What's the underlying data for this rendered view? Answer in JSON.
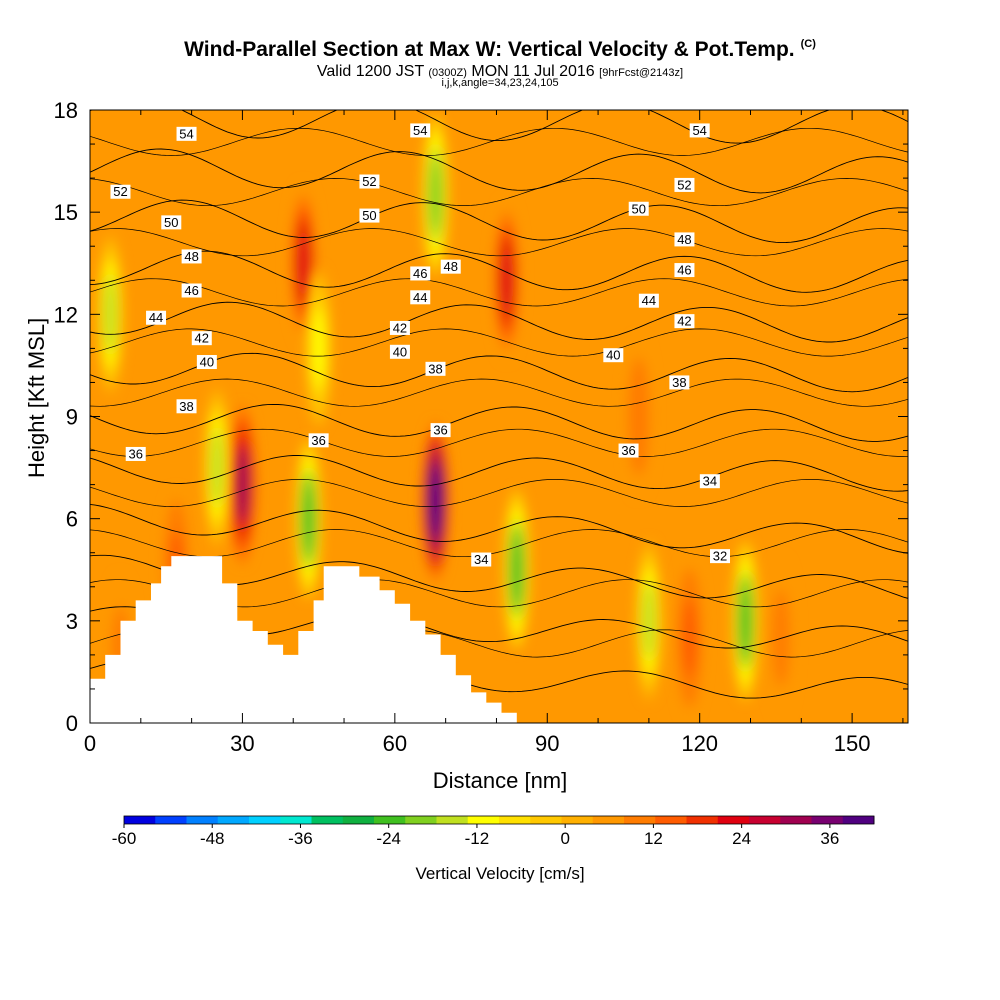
{
  "header": {
    "title": "Wind-Parallel Section at Max W: Vertical Velocity & Pot.Temp.",
    "copyright": "(C)",
    "valid_prefix": "Valid 1200 JST",
    "valid_utc": "(0300Z)",
    "valid_date": "MON 11 Jul 2016",
    "forecast": "[9hrFcst@2143z]",
    "grid_info": "i,j,k,angle=34,23,24,105"
  },
  "chart_data": {
    "type": "heatmap",
    "title": "Wind-Parallel Section at Max W: Vertical Velocity & Pot.Temp.",
    "xlabel": "Distance [nm]",
    "ylabel": "Height [Kft MSL]",
    "xlim": [
      0,
      161
    ],
    "ylim": [
      0,
      18
    ],
    "xticks": [
      "0",
      "30",
      "60",
      "90",
      "120",
      "150"
    ],
    "yticks": [
      "0",
      "3",
      "6",
      "9",
      "12",
      "15",
      "18"
    ],
    "colorbar": {
      "label": "Vertical Velocity [cm/s]",
      "ticks": [
        "-60",
        "-48",
        "-36",
        "-24",
        "-12",
        "0",
        "12",
        "24",
        "36"
      ],
      "range": [
        -60,
        42
      ],
      "colors": [
        "#0000e0",
        "#0040ff",
        "#0080ff",
        "#00a8ff",
        "#00d0ff",
        "#00e8d0",
        "#00c060",
        "#10b040",
        "#40c020",
        "#80d020",
        "#c0e020",
        "#ffff00",
        "#ffe000",
        "#ffc800",
        "#ffb000",
        "#ff9800",
        "#ff7c00",
        "#ff5c00",
        "#f03000",
        "#e00010",
        "#c80030",
        "#a00050",
        "#780070",
        "#500080"
      ]
    },
    "filled_field": "vertical velocity (cm/s)",
    "updrafts": [
      {
        "x": 30,
        "z": 7,
        "w": 30
      },
      {
        "x": 68,
        "z": 6.5,
        "w": 40
      },
      {
        "x": 42,
        "z": 13.5,
        "w": 22
      },
      {
        "x": 82,
        "z": 13,
        "w": 22
      },
      {
        "x": 17,
        "z": 4.5,
        "w": 14
      },
      {
        "x": 108,
        "z": 9,
        "w": 12
      },
      {
        "x": 118,
        "z": 2.5,
        "w": 14
      },
      {
        "x": 136,
        "z": 2.5,
        "w": 10
      },
      {
        "x": 6,
        "z": 2,
        "w": 10
      }
    ],
    "downdrafts": [
      {
        "x": 84,
        "z": 4.5,
        "w": -24
      },
      {
        "x": 43,
        "z": 6,
        "w": -24
      },
      {
        "x": 129,
        "z": 3,
        "w": -24
      },
      {
        "x": 110,
        "z": 3,
        "w": -16
      },
      {
        "x": 68,
        "z": 15.5,
        "w": -20
      },
      {
        "x": 4,
        "z": 12,
        "w": -16
      },
      {
        "x": 45,
        "z": 11,
        "w": -10
      },
      {
        "x": 25,
        "z": 7.5,
        "w": -14
      }
    ],
    "contour_field": "potential temperature",
    "contour_levels": [
      32,
      34,
      36,
      38,
      40,
      42,
      44,
      46,
      48,
      50,
      52,
      54
    ],
    "contour_labels": [
      {
        "text": "54",
        "x": 19,
        "z": 17.3
      },
      {
        "text": "54",
        "x": 65,
        "z": 17.4
      },
      {
        "text": "54",
        "x": 120,
        "z": 17.4
      },
      {
        "text": "52",
        "x": 6,
        "z": 15.6
      },
      {
        "text": "52",
        "x": 55,
        "z": 15.9
      },
      {
        "text": "52",
        "x": 117,
        "z": 15.8
      },
      {
        "text": "50",
        "x": 16,
        "z": 14.7
      },
      {
        "text": "50",
        "x": 55,
        "z": 14.9
      },
      {
        "text": "50",
        "x": 108,
        "z": 15.1
      },
      {
        "text": "48",
        "x": 20,
        "z": 13.7
      },
      {
        "text": "48",
        "x": 71,
        "z": 13.4
      },
      {
        "text": "48",
        "x": 117,
        "z": 14.2
      },
      {
        "text": "46",
        "x": 20,
        "z": 12.7
      },
      {
        "text": "46",
        "x": 65,
        "z": 13.2
      },
      {
        "text": "46",
        "x": 117,
        "z": 13.3
      },
      {
        "text": "44",
        "x": 13,
        "z": 11.9
      },
      {
        "text": "44",
        "x": 65,
        "z": 12.5
      },
      {
        "text": "44",
        "x": 110,
        "z": 12.4
      },
      {
        "text": "42",
        "x": 22,
        "z": 11.3
      },
      {
        "text": "42",
        "x": 61,
        "z": 11.6
      },
      {
        "text": "42",
        "x": 117,
        "z": 11.8
      },
      {
        "text": "40",
        "x": 23,
        "z": 10.6
      },
      {
        "text": "40",
        "x": 61,
        "z": 10.9
      },
      {
        "text": "40",
        "x": 103,
        "z": 10.8
      },
      {
        "text": "38",
        "x": 19,
        "z": 9.3
      },
      {
        "text": "38",
        "x": 68,
        "z": 10.4
      },
      {
        "text": "38",
        "x": 116,
        "z": 10.0
      },
      {
        "text": "36",
        "x": 9,
        "z": 7.9
      },
      {
        "text": "36",
        "x": 45,
        "z": 8.3
      },
      {
        "text": "36",
        "x": 69,
        "z": 8.6
      },
      {
        "text": "36",
        "x": 106,
        "z": 8.0
      },
      {
        "text": "34",
        "x": 77,
        "z": 4.8
      },
      {
        "text": "34",
        "x": 122,
        "z": 7.1
      },
      {
        "text": "32",
        "x": 124,
        "z": 4.9
      }
    ],
    "terrain": [
      [
        0,
        1.3
      ],
      [
        3,
        1.3
      ],
      [
        3,
        2
      ],
      [
        6,
        2
      ],
      [
        6,
        3
      ],
      [
        9,
        3
      ],
      [
        9,
        3.6
      ],
      [
        12,
        3.6
      ],
      [
        12,
        4.1
      ],
      [
        14,
        4.1
      ],
      [
        14,
        4.6
      ],
      [
        16,
        4.6
      ],
      [
        16,
        4.9
      ],
      [
        26,
        4.9
      ],
      [
        26,
        4.1
      ],
      [
        29,
        4.1
      ],
      [
        29,
        3
      ],
      [
        32,
        3
      ],
      [
        32,
        2.7
      ],
      [
        35,
        2.7
      ],
      [
        35,
        2.3
      ],
      [
        38,
        2.3
      ],
      [
        38,
        2
      ],
      [
        41,
        2
      ],
      [
        41,
        2.7
      ],
      [
        44,
        2.7
      ],
      [
        44,
        3.6
      ],
      [
        46,
        3.6
      ],
      [
        46,
        4.6
      ],
      [
        53,
        4.6
      ],
      [
        53,
        4.3
      ],
      [
        57,
        4.3
      ],
      [
        57,
        3.9
      ],
      [
        60,
        3.9
      ],
      [
        60,
        3.5
      ],
      [
        63,
        3.5
      ],
      [
        63,
        3
      ],
      [
        66,
        3
      ],
      [
        66,
        2.6
      ],
      [
        69,
        2.6
      ],
      [
        69,
        2
      ],
      [
        72,
        2
      ],
      [
        72,
        1.4
      ],
      [
        75,
        1.4
      ],
      [
        75,
        0.9
      ],
      [
        78,
        0.9
      ],
      [
        78,
        0.6
      ],
      [
        81,
        0.6
      ],
      [
        81,
        0.3
      ],
      [
        84,
        0.3
      ],
      [
        84,
        0
      ]
    ]
  }
}
